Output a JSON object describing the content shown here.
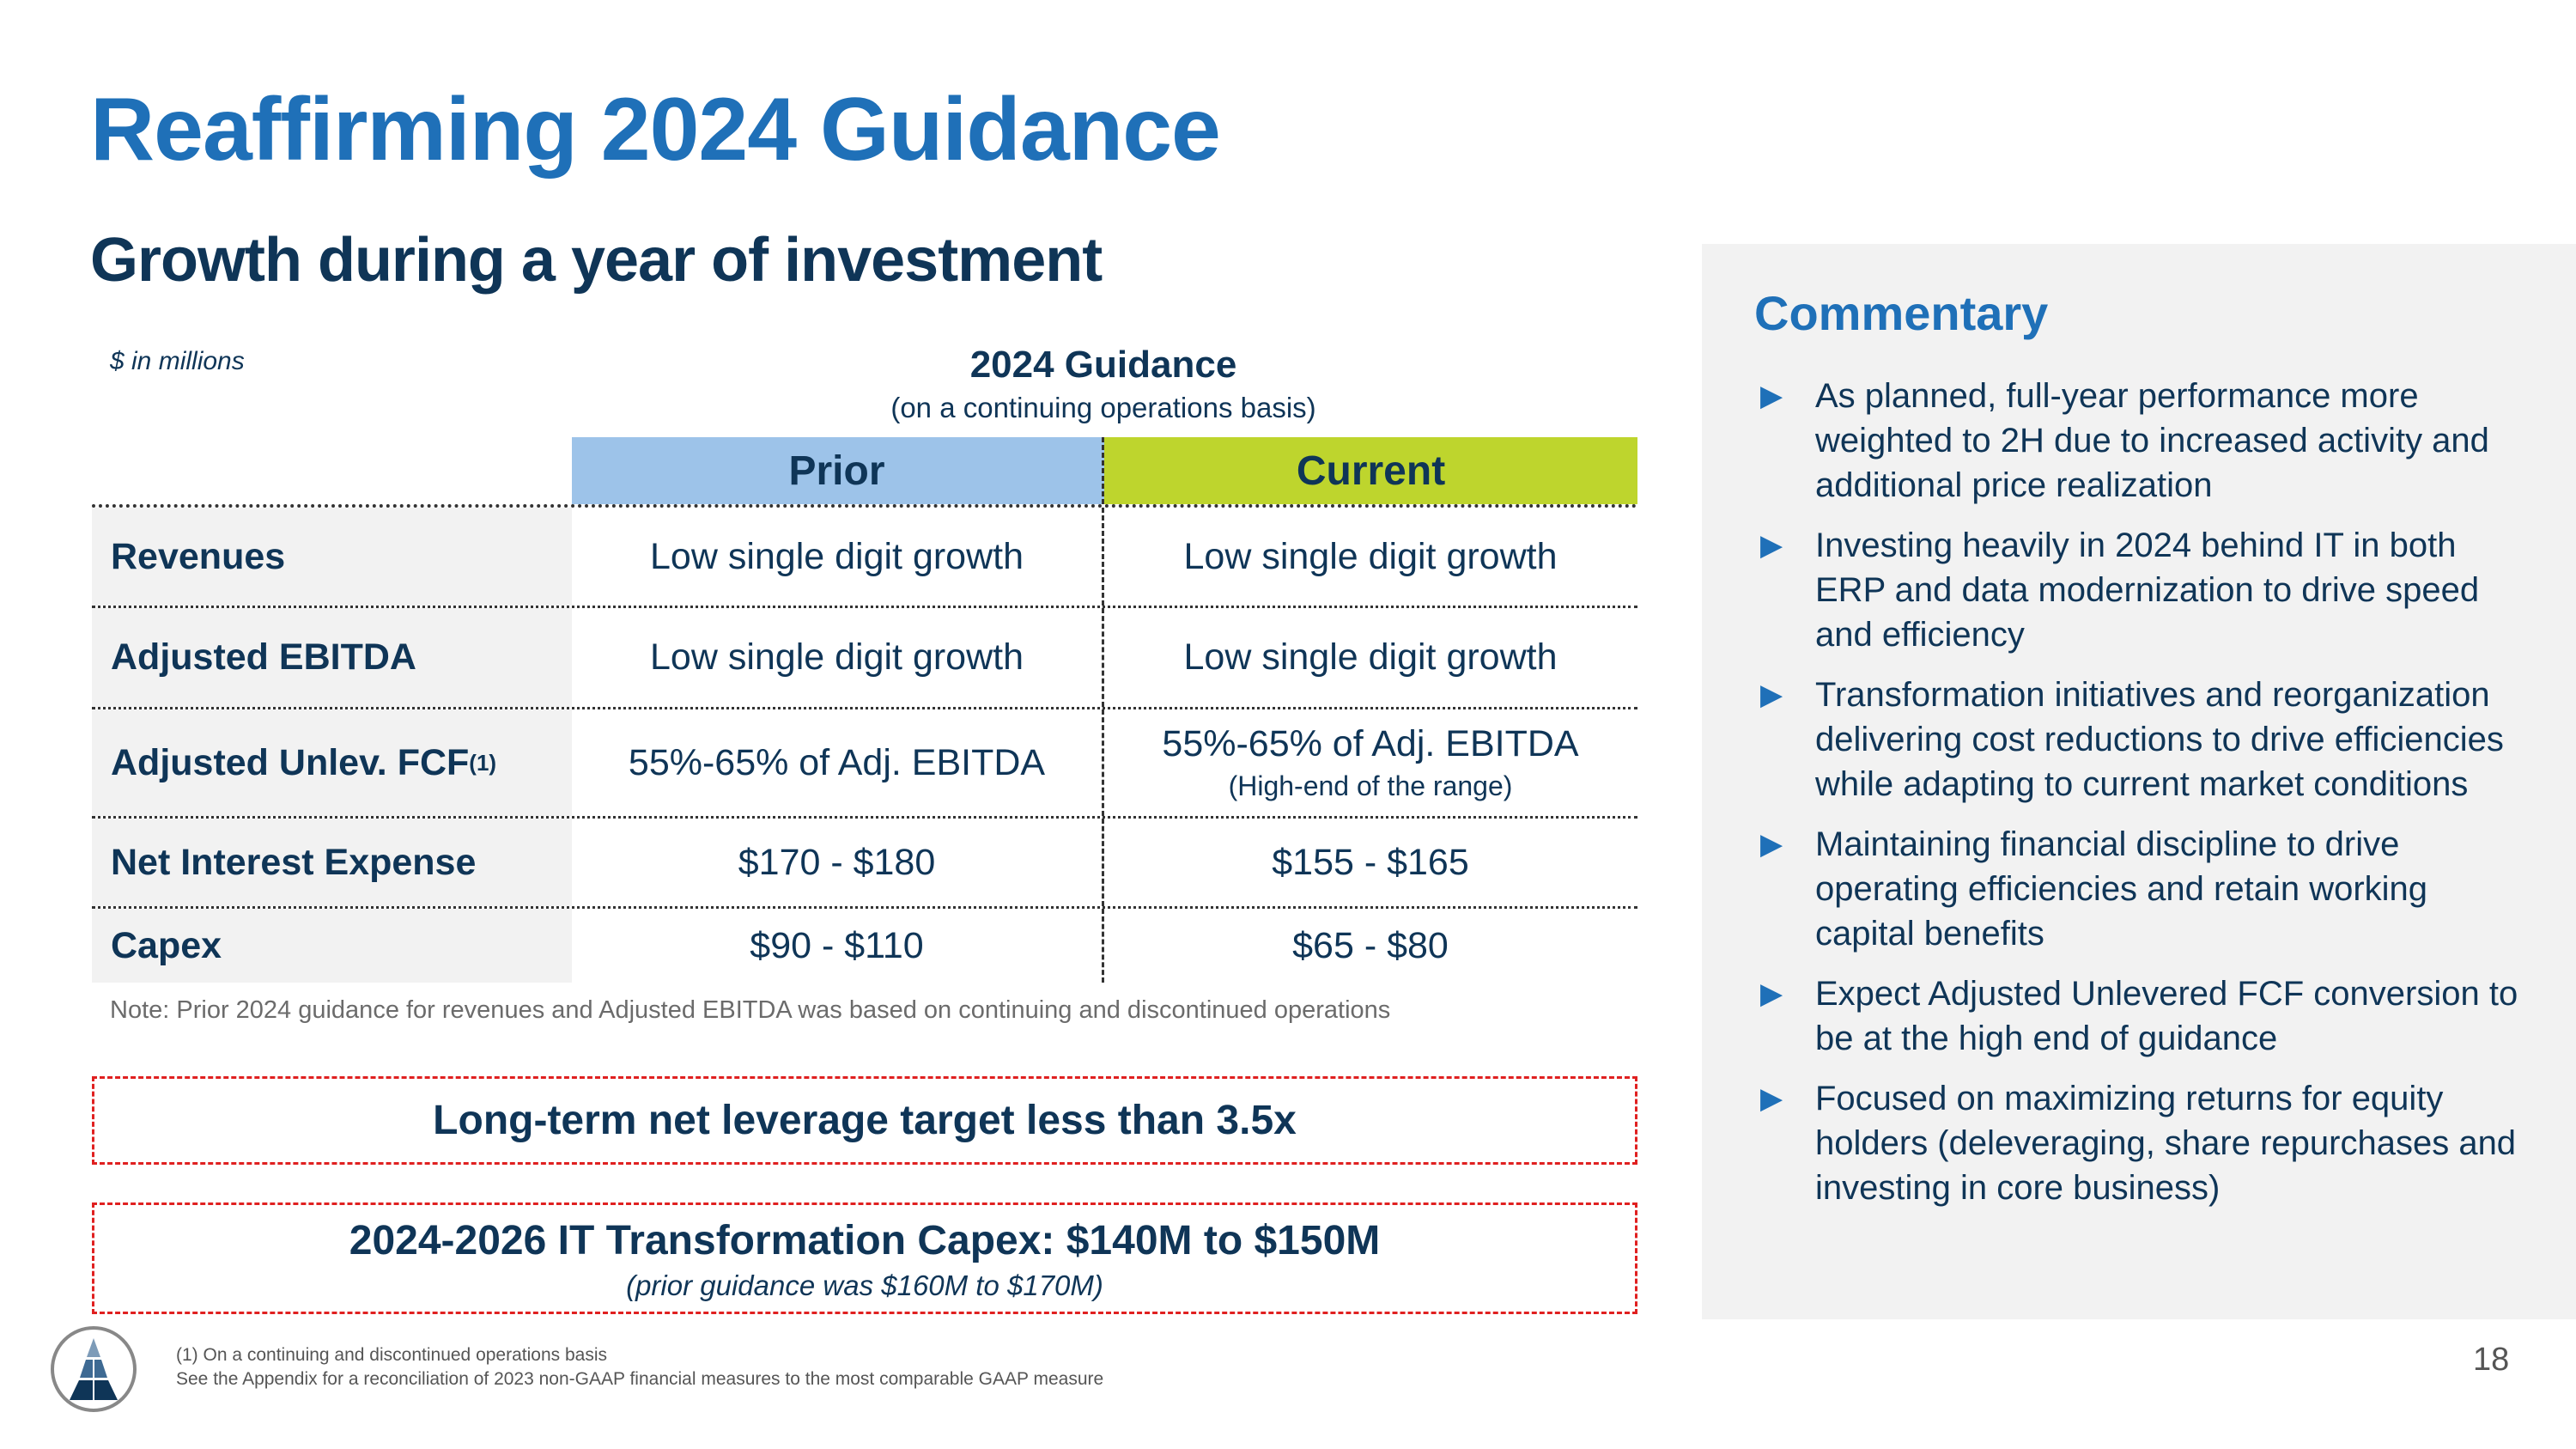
{
  "title": "Reaffirming 2024 Guidance",
  "subtitle": "Growth during a year of investment",
  "units": "$ in millions",
  "guidance": {
    "title": "2024 Guidance",
    "subtitle": "(on a continuing operations basis)"
  },
  "table": {
    "headers": {
      "prior": "Prior",
      "current": "Current"
    },
    "header_colors": {
      "prior": "#9dc3e9",
      "current": "#bed52d"
    },
    "rows": [
      {
        "label": "Revenues",
        "prior": "Low single digit growth",
        "current": "Low single digit growth"
      },
      {
        "label": "Adjusted EBITDA",
        "prior": "Low single digit growth",
        "current": "Low single digit growth"
      },
      {
        "label": "Adjusted Unlev. FCF",
        "sup": "(1)",
        "prior": "55%-65% of Adj. EBITDA",
        "current": "55%-65% of Adj. EBITDA",
        "current_note": "(High-end of the range)"
      },
      {
        "label": "Net Interest Expense",
        "prior": "$170 - $180",
        "current": "$155 - $165"
      },
      {
        "label": "Capex",
        "prior": "$90 - $110",
        "current": "$65 - $80"
      }
    ]
  },
  "note": "Note: Prior 2024 guidance for revenues and Adjusted EBITDA was based on continuing and discontinued operations",
  "box1": "Long-term net leverage target less than 3.5x",
  "box2": {
    "title": "2024-2026 IT Transformation Capex: $140M to $150M",
    "subtitle": "(prior guidance was $160M to $170M)"
  },
  "commentary": {
    "title": "Commentary",
    "bullet_icon": "triangle-right-icon",
    "items": [
      "As planned, full-year performance more weighted to 2H due to increased activity and additional price realization",
      "Investing heavily in 2024 behind IT in both ERP and data modernization to drive speed and efficiency",
      "Transformation initiatives and reorganization delivering cost reductions to drive efficiencies while adapting to current market conditions",
      "Maintaining financial discipline to drive operating efficiencies and retain working capital benefits",
      "Expect Adjusted Unlevered FCF conversion to be at the high end of guidance",
      "Focused on maximizing returns for equity holders (deleveraging, share repurchases and investing in core business)"
    ]
  },
  "footnotes": [
    "(1) On a continuing and discontinued operations basis",
    "See the Appendix for a reconciliation of 2023 non-GAAP financial measures to the most comparable GAAP measure"
  ],
  "page_number": "18",
  "colors": {
    "accent": "#1f70b8",
    "navy": "#0f3557",
    "dashed_border": "#e02020"
  }
}
